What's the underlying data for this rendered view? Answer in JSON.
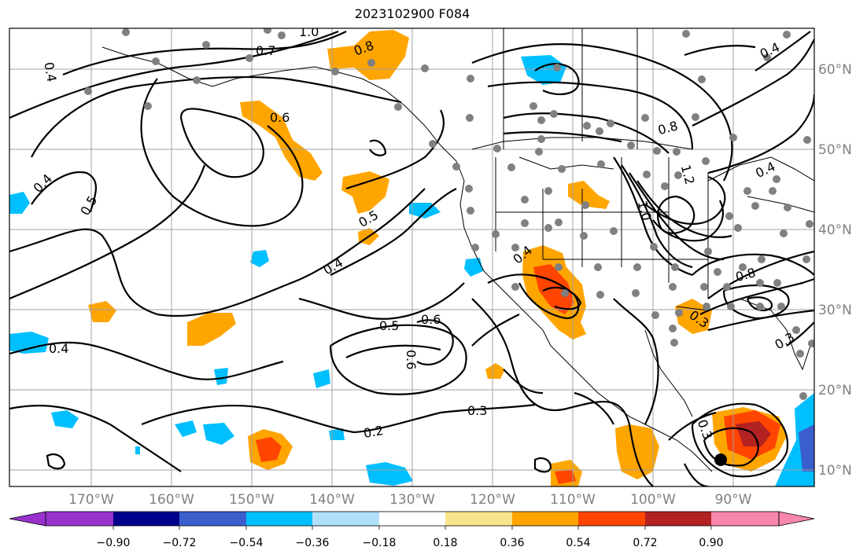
{
  "title": "2023102900 F084",
  "map": {
    "lat_labels": [
      "60°N",
      "50°N",
      "40°N",
      "30°N",
      "20°N",
      "10°N"
    ],
    "lon_labels": [
      "170°W",
      "160°W",
      "150°W",
      "140°W",
      "130°W",
      "120°W",
      "110°W",
      "100°W",
      "90°W"
    ],
    "contour_labels": [
      "1.0",
      "0.8",
      "0.7",
      "0.6",
      "0.4",
      "0.5",
      "0.4",
      "0.5",
      "0.4",
      "0.4",
      "0.5",
      "0.6",
      "0.6",
      "0.3",
      "0.2",
      "0.8",
      "1.2",
      "1.0",
      "0.4",
      "0.4",
      "0.8",
      "0.3",
      "0.3",
      "0.4",
      "0.3"
    ]
  },
  "colorbar": {
    "ticks": [
      "−0.90",
      "−0.72",
      "−0.54",
      "−0.36",
      "−0.18",
      "0.18",
      "0.36",
      "0.54",
      "0.72",
      "0.90"
    ],
    "colors": [
      "#9932cc",
      "#00008b",
      "#3a5fcd",
      "#00bfff",
      "#b0e0fa",
      "#ffffff",
      "#f9e58c",
      "#ffa500",
      "#ff4500",
      "#b22222",
      "#f986ab"
    ]
  },
  "colors": {
    "contour": "#000000",
    "grid": "#a0a0a0",
    "station": "#808080",
    "orange": "#ffa500",
    "red": "#ff4500",
    "darkred": "#b22222",
    "cyan": "#00bfff",
    "blue": "#3a5fcd"
  }
}
